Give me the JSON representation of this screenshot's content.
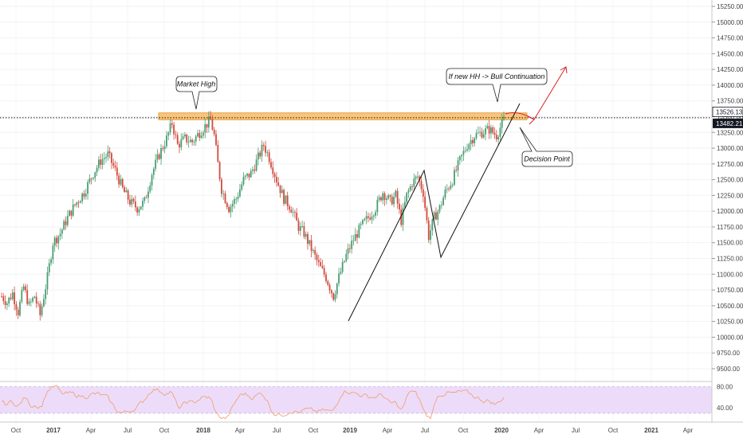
{
  "chart_data": {
    "type": "candlestick",
    "title": "",
    "price_axis": {
      "range": [
        9350,
        15350
      ],
      "ticks": [
        "15250.00",
        "15000.00",
        "14750.00",
        "14500.00",
        "14250.00",
        "14000.00",
        "13750.00",
        "13500.00",
        "13250.00",
        "13000.00",
        "12750.00",
        "12500.00",
        "12250.00",
        "12000.00",
        "11750.00",
        "11500.00",
        "11250.00",
        "11000.00",
        "10750.00",
        "10500.00",
        "10250.00",
        "10000.00",
        "9750.00",
        "9500.00"
      ],
      "tick_values": [
        15250,
        15000,
        14750,
        14500,
        14250,
        14000,
        13750,
        13500,
        13250,
        13000,
        12750,
        12500,
        12250,
        12000,
        11750,
        11500,
        11250,
        11000,
        10750,
        10500,
        10250,
        10000,
        9750,
        9500
      ],
      "price_tags": [
        {
          "label": "13526.13",
          "value": 13526.13,
          "style": "outline"
        },
        {
          "label": "13482.21",
          "value": 13482.21,
          "style": "dark"
        }
      ]
    },
    "time_axis": {
      "labels": [
        "Oct",
        "2017",
        "Apr",
        "Jul",
        "Oct",
        "2018",
        "Apr",
        "Jul",
        "Oct",
        "2019",
        "Apr",
        "Jul",
        "Oct",
        "2020",
        "Apr",
        "Jul",
        "Oct",
        "2021",
        "Apr"
      ],
      "bold": [
        "2017",
        "2018",
        "2019",
        "2020",
        "2021"
      ]
    },
    "rsi": {
      "ticks": [
        "80.00",
        "40.00"
      ],
      "tick_values": [
        80,
        40
      ],
      "band": [
        30,
        80
      ],
      "range": [
        15,
        88
      ]
    },
    "waypoints": [
      [
        0,
        10650
      ],
      [
        3,
        10550
      ],
      [
        6,
        10700
      ],
      [
        9,
        10400
      ],
      [
        12,
        10800
      ],
      [
        15,
        10500
      ],
      [
        18,
        10650
      ],
      [
        21,
        10350
      ],
      [
        25,
        10950
      ],
      [
        28,
        11500
      ],
      [
        32,
        11650
      ],
      [
        36,
        11900
      ],
      [
        40,
        12100
      ],
      [
        45,
        12300
      ],
      [
        50,
        12600
      ],
      [
        54,
        12800
      ],
      [
        58,
        12900
      ],
      [
        62,
        12650
      ],
      [
        66,
        12350
      ],
      [
        70,
        12150
      ],
      [
        74,
        12050
      ],
      [
        78,
        12150
      ],
      [
        82,
        12600
      ],
      [
        86,
        12900
      ],
      [
        90,
        13150
      ],
      [
        93,
        13400
      ],
      [
        96,
        13050
      ],
      [
        100,
        13150
      ],
      [
        104,
        13100
      ],
      [
        108,
        13250
      ],
      [
        111,
        13350
      ],
      [
        114,
        13450
      ],
      [
        116,
        13200
      ],
      [
        118,
        12750
      ],
      [
        120,
        12350
      ],
      [
        124,
        12050
      ],
      [
        128,
        12200
      ],
      [
        132,
        12500
      ],
      [
        136,
        12600
      ],
      [
        140,
        12850
      ],
      [
        143,
        13050
      ],
      [
        146,
        12850
      ],
      [
        150,
        12500
      ],
      [
        154,
        12200
      ],
      [
        158,
        12050
      ],
      [
        162,
        11750
      ],
      [
        165,
        11650
      ],
      [
        169,
        11400
      ],
      [
        173,
        11150
      ],
      [
        177,
        10950
      ],
      [
        181,
        10650
      ],
      [
        184,
        10950
      ],
      [
        188,
        11300
      ],
      [
        192,
        11550
      ],
      [
        196,
        11750
      ],
      [
        200,
        11900
      ],
      [
        204,
        12050
      ],
      [
        208,
        12300
      ],
      [
        212,
        12150
      ],
      [
        215,
        12250
      ],
      [
        218,
        11850
      ],
      [
        221,
        12250
      ],
      [
        224,
        12450
      ],
      [
        227,
        12550
      ],
      [
        230,
        12300
      ],
      [
        233,
        11600
      ],
      [
        236,
        11900
      ],
      [
        239,
        12050
      ],
      [
        242,
        12300
      ],
      [
        246,
        12500
      ],
      [
        250,
        12800
      ],
      [
        254,
        13050
      ],
      [
        258,
        13200
      ],
      [
        262,
        13250
      ],
      [
        266,
        13300
      ],
      [
        270,
        13200
      ],
      [
        274,
        13450
      ]
    ],
    "resistance_zone": {
      "from": 13450,
      "to": 13560,
      "color": "#f7b04f"
    },
    "dotted_level": 13482.21,
    "annotations": [
      {
        "text": "Market High"
      },
      {
        "text": "If new HH -> Bull Continuation"
      },
      {
        "text": "Decision Point"
      }
    ],
    "colors": {
      "up": "#4a9d72",
      "down": "#d24b3d",
      "rsi_line": "#f2a279",
      "rsi_band": "#ecdcf9",
      "projection": "#e02020"
    }
  }
}
